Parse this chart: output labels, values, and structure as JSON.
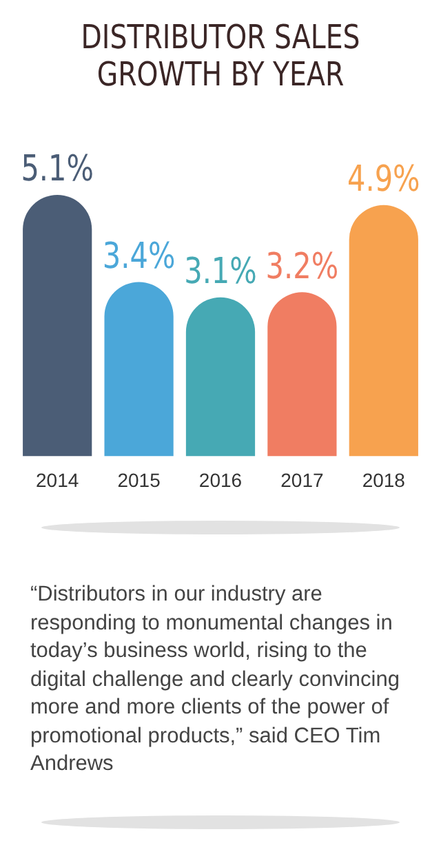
{
  "chart_data": {
    "type": "bar",
    "title": "DISTRIBUTOR SALES GROWTH BY YEAR",
    "categories": [
      "2014",
      "2015",
      "2016",
      "2017",
      "2018"
    ],
    "values": [
      5.1,
      3.4,
      3.1,
      3.2,
      4.9
    ],
    "value_labels": [
      "5.1%",
      "3.4%",
      "3.1%",
      "3.2%",
      "4.9%"
    ],
    "colors": [
      "#4b5d76",
      "#4ba7d9",
      "#46a9b4",
      "#f07d62",
      "#f7a24f"
    ],
    "annotations": [
      "“Distributors in our industry are responding to monumental changes in today’s business world, rising to the digital challenge and clearly convincing more and more clients of the power of promotional products,” said CEO Tim Andrews"
    ],
    "grid": false,
    "legend": false
  }
}
